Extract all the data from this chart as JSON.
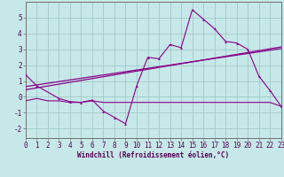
{
  "xlabel": "Windchill (Refroidissement éolien,°C)",
  "bg_color": "#c6e8e8",
  "grid_color": "#9cc4c4",
  "line_color": "#880088",
  "x_hours": [
    0,
    1,
    2,
    3,
    4,
    5,
    6,
    7,
    8,
    9,
    10,
    11,
    12,
    13,
    14,
    15,
    16,
    17,
    18,
    19,
    20,
    21,
    22,
    23
  ],
  "series_main": [
    1.4,
    0.7,
    null,
    -0.1,
    -0.3,
    -0.35,
    -0.2,
    -0.9,
    -1.3,
    -1.7,
    0.7,
    2.5,
    2.4,
    3.3,
    3.1,
    5.5,
    4.9,
    4.3,
    3.5,
    3.4,
    3.0,
    1.3,
    0.4,
    -0.6
  ],
  "trend1_x": [
    0,
    23
  ],
  "trend1_y": [
    0.65,
    3.05
  ],
  "trend2_x": [
    0,
    23
  ],
  "trend2_y": [
    0.45,
    3.15
  ],
  "flat_x": [
    0,
    1,
    2,
    3,
    4,
    5,
    6,
    7,
    8,
    9,
    10,
    11,
    12,
    13,
    14,
    15,
    16,
    17,
    18,
    19,
    20,
    21,
    22,
    23
  ],
  "flat_y": [
    -0.25,
    -0.1,
    -0.25,
    -0.25,
    -0.35,
    -0.35,
    -0.25,
    -0.35,
    -0.35,
    -0.35,
    -0.35,
    -0.35,
    -0.35,
    -0.35,
    -0.35,
    -0.35,
    -0.35,
    -0.35,
    -0.35,
    -0.35,
    -0.35,
    -0.35,
    -0.35,
    -0.6
  ],
  "ylim": [
    -2.6,
    6.0
  ],
  "xlim": [
    0,
    23
  ],
  "yticks": [
    -2,
    -1,
    0,
    1,
    2,
    3,
    4,
    5
  ],
  "xticks": [
    0,
    1,
    2,
    3,
    4,
    5,
    6,
    7,
    8,
    9,
    10,
    11,
    12,
    13,
    14,
    15,
    16,
    17,
    18,
    19,
    20,
    21,
    22,
    23
  ],
  "tick_fontsize": 5.5,
  "xlabel_fontsize": 5.5
}
